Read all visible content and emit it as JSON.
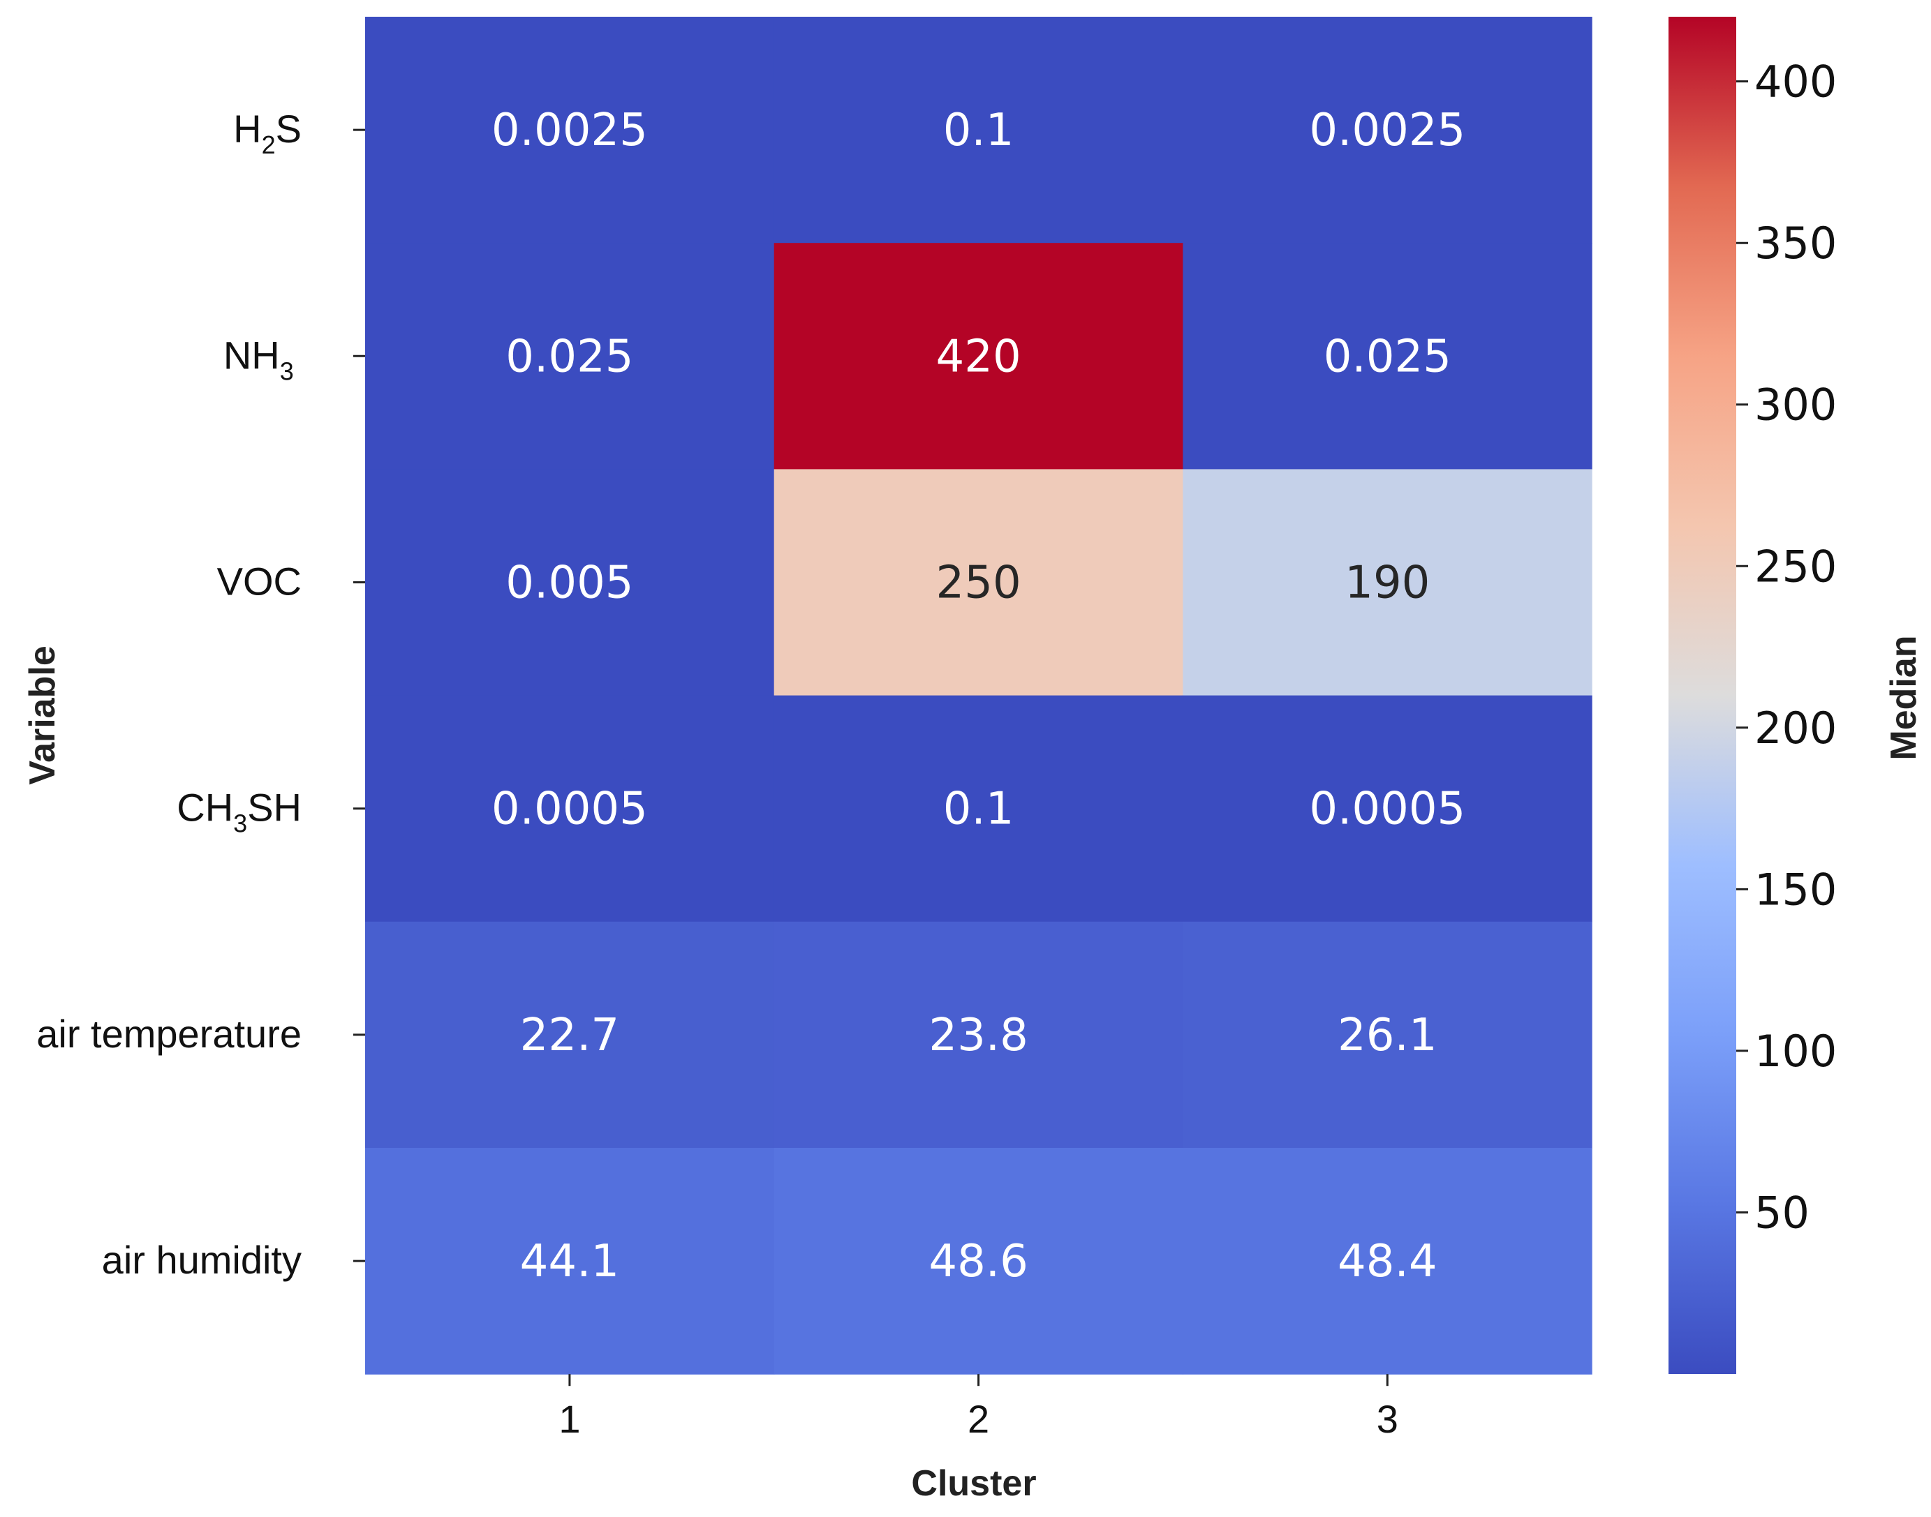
{
  "chart_data": {
    "type": "heatmap",
    "xlabel": "Cluster",
    "ylabel": "Variable",
    "colorbar_label": "Median",
    "colormap": "coolwarm",
    "value_range": [
      0,
      420
    ],
    "colorbar_ticks": [
      "50",
      "100",
      "150",
      "200",
      "250",
      "300",
      "350",
      "400"
    ],
    "x_categories": [
      "1",
      "2",
      "3"
    ],
    "rows": [
      {
        "label_main": "H",
        "label_sub": "2",
        "label_tail": "S",
        "labels": [
          "0.0025",
          "0.1",
          "0.0025"
        ],
        "values": [
          0.0025,
          0.1,
          0.0025
        ]
      },
      {
        "label_main": "NH",
        "label_sub": "3",
        "label_tail": "",
        "labels": [
          "0.025",
          "420",
          "0.025"
        ],
        "values": [
          0.025,
          420,
          0.025
        ]
      },
      {
        "label_main": "VOC",
        "label_sub": "",
        "label_tail": "",
        "labels": [
          "0.005",
          "250",
          "190"
        ],
        "values": [
          0.005,
          250,
          190
        ]
      },
      {
        "label_main": "CH",
        "label_sub": "3",
        "label_tail": "SH",
        "labels": [
          "0.0005",
          "0.1",
          "0.0005"
        ],
        "values": [
          0.0005,
          0.1,
          0.0005
        ]
      },
      {
        "label_main": "air temperature",
        "label_sub": "",
        "label_tail": "",
        "labels": [
          "22.7",
          "23.8",
          "26.1"
        ],
        "values": [
          22.7,
          23.8,
          26.1
        ]
      },
      {
        "label_main": "air humidity",
        "label_sub": "",
        "label_tail": "",
        "labels": [
          "44.1",
          "48.6",
          "48.4"
        ],
        "values": [
          44.1,
          48.6,
          48.4
        ]
      }
    ]
  }
}
